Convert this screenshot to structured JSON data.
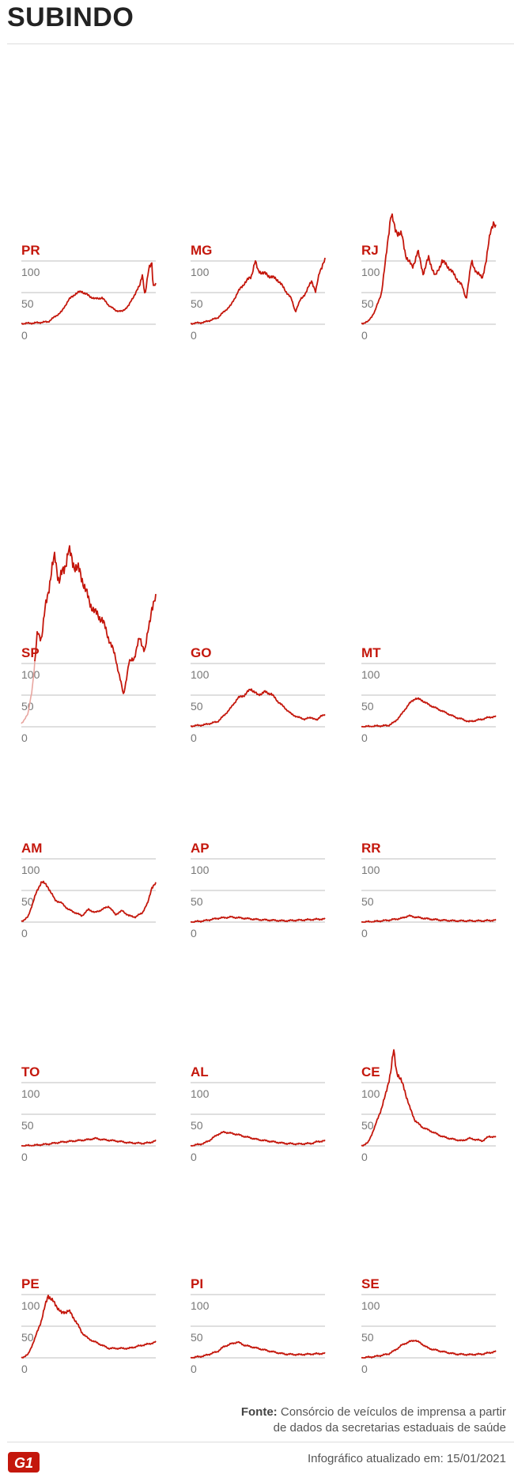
{
  "header": {
    "title": "SUBINDO"
  },
  "colors": {
    "line": "#c4170c",
    "label": "#c4170c",
    "grid": "#bfbfbf",
    "tick": "#777777",
    "sp_early": "#e8a6a0"
  },
  "footer": {
    "source_label": "Fonte:",
    "source_text": "Consórcio de veículos de imprensa a partir",
    "source_text_2": "de dados da secretarias estaduais de saúde",
    "updated_label": "Infográfico atualizado em:",
    "updated_date": "15/01/2021",
    "logo_text": "G1"
  },
  "chart_data": [
    {
      "type": "line",
      "title": "PR",
      "yticks": [
        0,
        50,
        100
      ],
      "ylim": [
        0,
        100
      ],
      "keypoints": [
        [
          0,
          1
        ],
        [
          0.1,
          2
        ],
        [
          0.2,
          4
        ],
        [
          0.3,
          20
        ],
        [
          0.35,
          38
        ],
        [
          0.4,
          48
        ],
        [
          0.45,
          52
        ],
        [
          0.5,
          45
        ],
        [
          0.55,
          40
        ],
        [
          0.6,
          42
        ],
        [
          0.65,
          30
        ],
        [
          0.7,
          22
        ],
        [
          0.75,
          20
        ],
        [
          0.8,
          30
        ],
        [
          0.85,
          50
        ],
        [
          0.88,
          60
        ],
        [
          0.9,
          80
        ],
        [
          0.92,
          45
        ],
        [
          0.95,
          90
        ],
        [
          0.97,
          100
        ],
        [
          0.98,
          60
        ],
        [
          1,
          62
        ]
      ]
    },
    {
      "type": "line",
      "title": "MG",
      "yticks": [
        0,
        50,
        100
      ],
      "ylim": [
        0,
        100
      ],
      "keypoints": [
        [
          0,
          1
        ],
        [
          0.1,
          3
        ],
        [
          0.2,
          10
        ],
        [
          0.25,
          20
        ],
        [
          0.3,
          30
        ],
        [
          0.35,
          50
        ],
        [
          0.4,
          65
        ],
        [
          0.45,
          75
        ],
        [
          0.48,
          100
        ],
        [
          0.5,
          85
        ],
        [
          0.55,
          80
        ],
        [
          0.6,
          75
        ],
        [
          0.65,
          70
        ],
        [
          0.7,
          55
        ],
        [
          0.75,
          40
        ],
        [
          0.78,
          20
        ],
        [
          0.82,
          40
        ],
        [
          0.86,
          50
        ],
        [
          0.9,
          70
        ],
        [
          0.93,
          50
        ],
        [
          0.96,
          85
        ],
        [
          1,
          100
        ]
      ]
    },
    {
      "type": "line",
      "title": "RJ",
      "yticks": [
        0,
        50,
        100
      ],
      "ylim": [
        0,
        100
      ],
      "keypoints": [
        [
          0,
          1
        ],
        [
          0.05,
          4
        ],
        [
          0.1,
          20
        ],
        [
          0.15,
          50
        ],
        [
          0.18,
          100
        ],
        [
          0.2,
          140
        ],
        [
          0.22,
          175
        ],
        [
          0.25,
          150
        ],
        [
          0.3,
          140
        ],
        [
          0.33,
          110
        ],
        [
          0.35,
          100
        ],
        [
          0.38,
          90
        ],
        [
          0.42,
          115
        ],
        [
          0.46,
          80
        ],
        [
          0.5,
          105
        ],
        [
          0.55,
          75
        ],
        [
          0.6,
          100
        ],
        [
          0.65,
          90
        ],
        [
          0.7,
          75
        ],
        [
          0.75,
          60
        ],
        [
          0.78,
          40
        ],
        [
          0.82,
          100
        ],
        [
          0.86,
          80
        ],
        [
          0.9,
          75
        ],
        [
          0.93,
          100
        ],
        [
          0.96,
          150
        ],
        [
          0.98,
          160
        ],
        [
          1,
          150
        ]
      ]
    },
    {
      "type": "line",
      "title": "SP",
      "yticks": [
        0,
        50,
        100
      ],
      "ylim": [
        0,
        100
      ],
      "early_until": 0.1,
      "keypoints": [
        [
          0,
          5
        ],
        [
          0.05,
          20
        ],
        [
          0.08,
          60
        ],
        [
          0.1,
          100
        ],
        [
          0.12,
          150
        ],
        [
          0.15,
          140
        ],
        [
          0.18,
          190
        ],
        [
          0.22,
          240
        ],
        [
          0.25,
          270
        ],
        [
          0.28,
          230
        ],
        [
          0.32,
          250
        ],
        [
          0.35,
          280
        ],
        [
          0.38,
          260
        ],
        [
          0.42,
          250
        ],
        [
          0.46,
          230
        ],
        [
          0.5,
          200
        ],
        [
          0.55,
          180
        ],
        [
          0.6,
          170
        ],
        [
          0.65,
          140
        ],
        [
          0.7,
          110
        ],
        [
          0.73,
          80
        ],
        [
          0.76,
          50
        ],
        [
          0.8,
          100
        ],
        [
          0.84,
          110
        ],
        [
          0.88,
          140
        ],
        [
          0.92,
          120
        ],
        [
          0.95,
          160
        ],
        [
          0.97,
          190
        ],
        [
          1,
          200
        ]
      ]
    },
    {
      "type": "line",
      "title": "GO",
      "yticks": [
        0,
        50,
        100
      ],
      "ylim": [
        0,
        100
      ],
      "keypoints": [
        [
          0,
          1
        ],
        [
          0.1,
          3
        ],
        [
          0.2,
          8
        ],
        [
          0.25,
          18
        ],
        [
          0.3,
          30
        ],
        [
          0.35,
          45
        ],
        [
          0.4,
          50
        ],
        [
          0.45,
          60
        ],
        [
          0.5,
          50
        ],
        [
          0.55,
          55
        ],
        [
          0.6,
          52
        ],
        [
          0.65,
          40
        ],
        [
          0.7,
          30
        ],
        [
          0.75,
          20
        ],
        [
          0.8,
          15
        ],
        [
          0.85,
          12
        ],
        [
          0.9,
          15
        ],
        [
          0.94,
          10
        ],
        [
          0.97,
          18
        ],
        [
          1,
          18
        ]
      ]
    },
    {
      "type": "line",
      "title": "MT",
      "yticks": [
        0,
        50,
        100
      ],
      "ylim": [
        0,
        100
      ],
      "keypoints": [
        [
          0,
          0
        ],
        [
          0.1,
          1
        ],
        [
          0.2,
          2
        ],
        [
          0.25,
          8
        ],
        [
          0.3,
          20
        ],
        [
          0.35,
          35
        ],
        [
          0.4,
          45
        ],
        [
          0.45,
          42
        ],
        [
          0.5,
          35
        ],
        [
          0.55,
          30
        ],
        [
          0.6,
          25
        ],
        [
          0.65,
          20
        ],
        [
          0.7,
          15
        ],
        [
          0.75,
          12
        ],
        [
          0.8,
          8
        ],
        [
          0.85,
          10
        ],
        [
          0.9,
          12
        ],
        [
          0.95,
          15
        ],
        [
          1,
          16
        ]
      ]
    },
    {
      "type": "line",
      "title": "AM",
      "yticks": [
        0,
        50,
        100
      ],
      "ylim": [
        0,
        100
      ],
      "keypoints": [
        [
          0,
          1
        ],
        [
          0.05,
          8
        ],
        [
          0.1,
          40
        ],
        [
          0.15,
          65
        ],
        [
          0.2,
          55
        ],
        [
          0.25,
          35
        ],
        [
          0.3,
          30
        ],
        [
          0.35,
          20
        ],
        [
          0.4,
          15
        ],
        [
          0.45,
          10
        ],
        [
          0.5,
          20
        ],
        [
          0.55,
          15
        ],
        [
          0.6,
          20
        ],
        [
          0.65,
          25
        ],
        [
          0.7,
          12
        ],
        [
          0.75,
          18
        ],
        [
          0.8,
          10
        ],
        [
          0.85,
          8
        ],
        [
          0.9,
          15
        ],
        [
          0.94,
          30
        ],
        [
          0.97,
          55
        ],
        [
          1,
          60
        ]
      ]
    },
    {
      "type": "line",
      "title": "AP",
      "yticks": [
        0,
        50,
        100
      ],
      "ylim": [
        0,
        100
      ],
      "keypoints": [
        [
          0,
          0
        ],
        [
          0.1,
          2
        ],
        [
          0.2,
          6
        ],
        [
          0.3,
          8
        ],
        [
          0.4,
          6
        ],
        [
          0.5,
          4
        ],
        [
          0.6,
          3
        ],
        [
          0.7,
          2
        ],
        [
          0.8,
          3
        ],
        [
          0.9,
          4
        ],
        [
          1,
          5
        ]
      ]
    },
    {
      "type": "line",
      "title": "RR",
      "yticks": [
        0,
        50,
        100
      ],
      "ylim": [
        0,
        100
      ],
      "keypoints": [
        [
          0,
          0
        ],
        [
          0.1,
          1
        ],
        [
          0.2,
          3
        ],
        [
          0.3,
          6
        ],
        [
          0.35,
          10
        ],
        [
          0.4,
          8
        ],
        [
          0.5,
          5
        ],
        [
          0.6,
          3
        ],
        [
          0.7,
          2
        ],
        [
          0.8,
          2
        ],
        [
          0.9,
          2
        ],
        [
          1,
          3
        ]
      ]
    },
    {
      "type": "line",
      "title": "TO",
      "yticks": [
        0,
        50,
        100
      ],
      "ylim": [
        0,
        100
      ],
      "keypoints": [
        [
          0,
          0
        ],
        [
          0.1,
          1
        ],
        [
          0.2,
          3
        ],
        [
          0.3,
          6
        ],
        [
          0.4,
          8
        ],
        [
          0.5,
          10
        ],
        [
          0.55,
          12
        ],
        [
          0.6,
          10
        ],
        [
          0.7,
          8
        ],
        [
          0.8,
          5
        ],
        [
          0.9,
          4
        ],
        [
          0.95,
          5
        ],
        [
          1,
          8
        ]
      ]
    },
    {
      "type": "line",
      "title": "AL",
      "yticks": [
        0,
        50,
        100
      ],
      "ylim": [
        0,
        100
      ],
      "keypoints": [
        [
          0,
          0
        ],
        [
          0.1,
          4
        ],
        [
          0.15,
          10
        ],
        [
          0.2,
          18
        ],
        [
          0.25,
          22
        ],
        [
          0.3,
          20
        ],
        [
          0.35,
          18
        ],
        [
          0.4,
          15
        ],
        [
          0.5,
          10
        ],
        [
          0.6,
          7
        ],
        [
          0.7,
          4
        ],
        [
          0.8,
          3
        ],
        [
          0.9,
          4
        ],
        [
          0.95,
          7
        ],
        [
          1,
          8
        ]
      ]
    },
    {
      "type": "line",
      "title": "CE",
      "yticks": [
        0,
        50,
        100
      ],
      "ylim": [
        0,
        100
      ],
      "keypoints": [
        [
          0,
          0
        ],
        [
          0.05,
          5
        ],
        [
          0.1,
          30
        ],
        [
          0.15,
          60
        ],
        [
          0.18,
          80
        ],
        [
          0.2,
          100
        ],
        [
          0.22,
          120
        ],
        [
          0.24,
          150
        ],
        [
          0.26,
          120
        ],
        [
          0.28,
          110
        ],
        [
          0.32,
          90
        ],
        [
          0.36,
          60
        ],
        [
          0.4,
          40
        ],
        [
          0.45,
          30
        ],
        [
          0.5,
          25
        ],
        [
          0.55,
          20
        ],
        [
          0.6,
          15
        ],
        [
          0.65,
          12
        ],
        [
          0.7,
          10
        ],
        [
          0.75,
          8
        ],
        [
          0.8,
          12
        ],
        [
          0.85,
          10
        ],
        [
          0.9,
          8
        ],
        [
          0.95,
          15
        ],
        [
          1,
          14
        ]
      ]
    },
    {
      "type": "line",
      "title": "PE",
      "yticks": [
        0,
        50,
        100
      ],
      "ylim": [
        0,
        100
      ],
      "keypoints": [
        [
          0,
          0
        ],
        [
          0.05,
          5
        ],
        [
          0.1,
          30
        ],
        [
          0.15,
          60
        ],
        [
          0.2,
          100
        ],
        [
          0.23,
          90
        ],
        [
          0.27,
          80
        ],
        [
          0.3,
          70
        ],
        [
          0.35,
          75
        ],
        [
          0.4,
          60
        ],
        [
          0.45,
          40
        ],
        [
          0.5,
          30
        ],
        [
          0.55,
          25
        ],
        [
          0.6,
          20
        ],
        [
          0.65,
          15
        ],
        [
          0.7,
          15
        ],
        [
          0.8,
          15
        ],
        [
          0.9,
          20
        ],
        [
          0.95,
          22
        ],
        [
          1,
          25
        ]
      ]
    },
    {
      "type": "line",
      "title": "PI",
      "yticks": [
        0,
        50,
        100
      ],
      "ylim": [
        0,
        100
      ],
      "keypoints": [
        [
          0,
          0
        ],
        [
          0.1,
          3
        ],
        [
          0.2,
          10
        ],
        [
          0.25,
          18
        ],
        [
          0.3,
          22
        ],
        [
          0.35,
          25
        ],
        [
          0.4,
          20
        ],
        [
          0.5,
          15
        ],
        [
          0.6,
          10
        ],
        [
          0.7,
          6
        ],
        [
          0.8,
          5
        ],
        [
          0.9,
          6
        ],
        [
          1,
          7
        ]
      ]
    },
    {
      "type": "line",
      "title": "SE",
      "yticks": [
        0,
        50,
        100
      ],
      "ylim": [
        0,
        100
      ],
      "keypoints": [
        [
          0,
          0
        ],
        [
          0.1,
          2
        ],
        [
          0.2,
          6
        ],
        [
          0.25,
          12
        ],
        [
          0.3,
          20
        ],
        [
          0.35,
          25
        ],
        [
          0.4,
          28
        ],
        [
          0.45,
          22
        ],
        [
          0.5,
          15
        ],
        [
          0.6,
          10
        ],
        [
          0.7,
          6
        ],
        [
          0.8,
          5
        ],
        [
          0.9,
          6
        ],
        [
          1,
          10
        ]
      ]
    }
  ]
}
